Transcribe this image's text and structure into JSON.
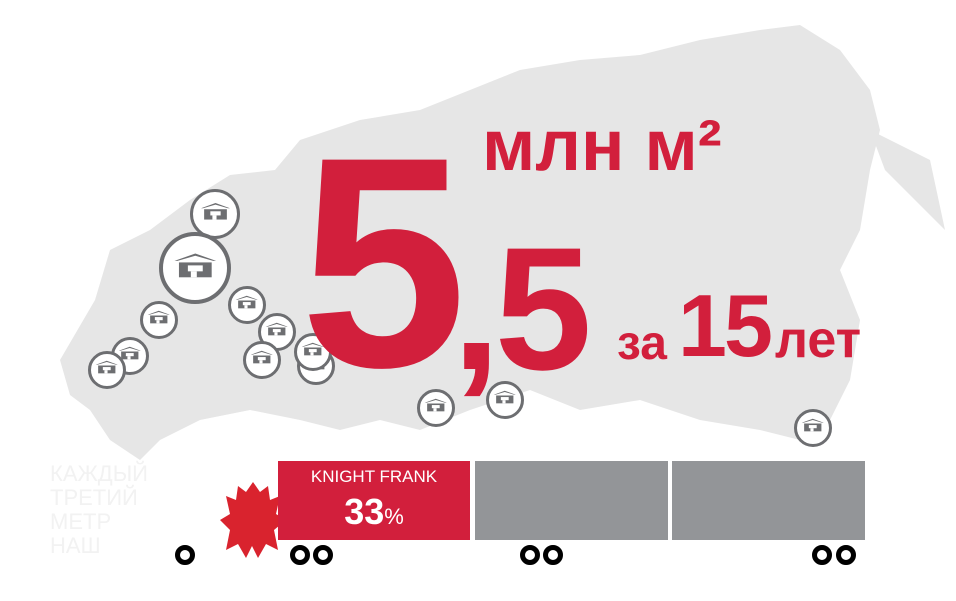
{
  "headline": {
    "value_integer": "5",
    "value_fraction": ",5",
    "unit": "млн м²",
    "period_prefix": "за",
    "period_number": "15",
    "period_suffix": "лет"
  },
  "truck": {
    "segments": [
      {
        "label": "KNIGHT FRANK",
        "value": "33",
        "unit": "%",
        "color": "#d21f3c"
      },
      {
        "label": "",
        "value": "",
        "color": "#939598"
      },
      {
        "label": "",
        "value": "",
        "color": "#939598"
      }
    ],
    "share": 0.33,
    "emblem": "double-headed-eagle-icon"
  },
  "faint_caption": [
    "КАЖДЫЙ",
    "ТРЕТИЙ",
    "МЕТР",
    "НАШ"
  ],
  "colors": {
    "accent": "#d21f3c",
    "map": "#e6e6e6",
    "marker": "#6d6e71",
    "segment": "#939598"
  },
  "map": {
    "icon": "warehouse-icon",
    "marker_count": 14
  }
}
